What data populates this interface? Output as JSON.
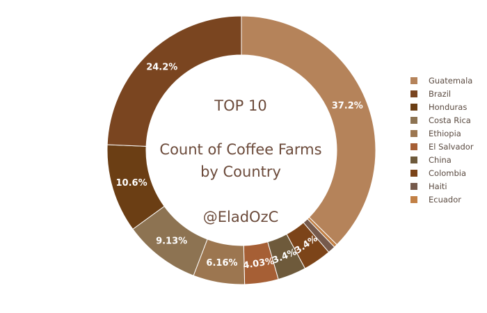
{
  "chart_data": {
    "type": "pie",
    "variant": "donut",
    "title_lines": [
      "TOP 10",
      "Count of Coffee Farms",
      "by Country",
      "@EladOzC"
    ],
    "categories": [
      "Guatemala",
      "Brazil",
      "Honduras",
      "Costa Rica",
      "Ethiopia",
      "El Salvador",
      "China",
      "Colombia",
      "Haiti",
      "Ecuador"
    ],
    "colors": [
      "#b5835a",
      "#7a4520",
      "#6b3e14",
      "#8d7352",
      "#9c7650",
      "#a65f35",
      "#6e5a3b",
      "#7c4419",
      "#765a4c",
      "#c28045"
    ],
    "render_order": [
      "Guatemala",
      "Ecuador",
      "Haiti",
      "Colombia",
      "China",
      "El Salvador",
      "Ethiopia",
      "Costa Rica",
      "Honduras",
      "Brazil"
    ],
    "values": {
      "Guatemala": 37.2,
      "Ecuador": 0.4,
      "Haiti": 0.9,
      "Colombia": 3.4,
      "China": 3.4,
      "El Salvador": 4.03,
      "Ethiopia": 6.16,
      "Costa Rica": 9.13,
      "Honduras": 10.6,
      "Brazil": 24.2
    },
    "data_labels": {
      "Guatemala": "37.2%",
      "Ecuador": "",
      "Haiti": "",
      "Colombia": "3.4%",
      "China": "3.4%",
      "El Salvador": "4.03%",
      "Ethiopia": "6.16%",
      "Costa Rica": "9.13%",
      "Honduras": "10.6%",
      "Brazil": "24.2%"
    },
    "legend_position": "right"
  }
}
